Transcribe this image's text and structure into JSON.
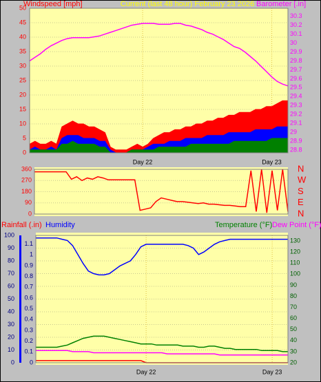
{
  "chart_data": [
    {
      "type": "line",
      "title": "Current (last 48 hour) February 23 2026",
      "categories": [
        null,
        null,
        null,
        null,
        null,
        null,
        null,
        null,
        null,
        null,
        null,
        null,
        null,
        null,
        null,
        null,
        null,
        null,
        null,
        null,
        null,
        "Day 22",
        null,
        null,
        null,
        null,
        null,
        null,
        null,
        null,
        null,
        null,
        null,
        null,
        null,
        null,
        null,
        null,
        null,
        null,
        null,
        null,
        null,
        null,
        null,
        "Day 23",
        null,
        null,
        null
      ],
      "ylim": [
        0,
        50
      ],
      "yticks": [
        0,
        5,
        10,
        15,
        20,
        25,
        30,
        35,
        40,
        45,
        50
      ],
      "y2lim": [
        28.77,
        30.39
      ],
      "y2ticks": [
        28.8,
        28.9,
        29,
        29.1,
        29.2,
        29.3,
        29.4,
        29.5,
        29.6,
        29.7,
        29.8,
        29.9,
        30,
        30.1,
        30.2,
        30.3
      ],
      "grid": true,
      "series": [
        {
          "name": "Windspeed [mph]",
          "color": "#ff0000",
          "fill": true,
          "values": [
            3,
            4,
            3,
            3,
            4,
            3,
            9,
            10,
            11,
            10,
            10,
            9,
            9,
            8,
            7,
            2,
            1,
            1,
            1,
            2,
            3,
            2,
            3,
            5,
            6,
            7,
            7,
            8,
            8,
            9,
            9,
            10,
            10,
            11,
            11,
            12,
            12,
            13,
            13,
            14,
            14,
            14,
            15,
            15,
            16,
            16,
            17,
            18,
            18
          ]
        },
        {
          "color": "#0000ff",
          "fill": true,
          "values": [
            1,
            2,
            1,
            1,
            2,
            1,
            5,
            6,
            6,
            6,
            5,
            5,
            5,
            4,
            4,
            1,
            0,
            0,
            0,
            1,
            1,
            1,
            2,
            3,
            3,
            3,
            4,
            4,
            4,
            5,
            5,
            5,
            5,
            6,
            6,
            6,
            6,
            7,
            7,
            7,
            7,
            7,
            8,
            8,
            8,
            8,
            9,
            9,
            9
          ]
        },
        {
          "color": "#008000",
          "fill": true,
          "values": [
            1,
            1,
            1,
            1,
            1,
            1,
            3,
            3,
            4,
            3,
            3,
            3,
            3,
            2,
            2,
            0,
            0,
            0,
            0,
            1,
            1,
            1,
            1,
            1,
            2,
            2,
            2,
            2,
            2,
            2,
            3,
            3,
            3,
            3,
            3,
            3,
            3,
            3,
            4,
            4,
            4,
            4,
            4,
            4,
            4,
            5,
            5,
            5,
            5
          ]
        },
        {
          "name": "Barometer [.in]",
          "color": "#ff00ff",
          "axis": "y2",
          "values": [
            29.8,
            29.84,
            29.88,
            29.93,
            29.97,
            30.0,
            30.03,
            30.05,
            30.06,
            30.06,
            30.06,
            30.06,
            30.07,
            30.08,
            30.1,
            30.12,
            30.14,
            30.16,
            30.18,
            30.2,
            30.21,
            30.22,
            30.22,
            30.22,
            30.21,
            30.21,
            30.21,
            30.22,
            30.22,
            30.2,
            30.19,
            30.17,
            30.15,
            30.12,
            30.1,
            30.07,
            30.04,
            30.0,
            29.96,
            29.94,
            29.9,
            29.85,
            29.8,
            29.74,
            29.68,
            29.62,
            29.57,
            29.54,
            29.52
          ]
        }
      ]
    },
    {
      "type": "line",
      "ylim": [
        0,
        360
      ],
      "yticks": [
        0,
        90,
        180,
        270,
        360
      ],
      "y2lim": [
        0,
        360
      ],
      "y2ticks": [
        {
          "value": 360,
          "label": "N"
        },
        {
          "value": 270,
          "label": "W"
        },
        {
          "value": 180,
          "label": "S"
        },
        {
          "value": 90,
          "label": "E"
        },
        {
          "value": 0,
          "label": "N"
        }
      ],
      "grid": true,
      "series": [
        {
          "color": "#ff0000",
          "values": [
            340,
            340,
            340,
            340,
            340,
            340,
            340,
            280,
            300,
            270,
            290,
            280,
            300,
            290,
            275,
            275,
            275,
            275,
            275,
            275,
            30,
            40,
            50,
            100,
            130,
            120,
            110,
            100,
            100,
            95,
            90,
            85,
            90,
            80,
            80,
            75,
            70,
            70,
            65,
            60,
            60,
            350,
            20,
            360,
            10,
            350,
            30,
            360,
            20
          ]
        }
      ]
    },
    {
      "type": "line",
      "categories": [
        null,
        null,
        null,
        null,
        null,
        null,
        null,
        null,
        null,
        null,
        null,
        null,
        null,
        null,
        null,
        null,
        null,
        null,
        null,
        null,
        null,
        "Day 22",
        null,
        null,
        null,
        null,
        null,
        null,
        null,
        null,
        null,
        null,
        null,
        null,
        null,
        null,
        null,
        null,
        null,
        null,
        null,
        null,
        null,
        null,
        null,
        "Day 23",
        null,
        null,
        null
      ],
      "ylim": [
        0,
        100
      ],
      "yticks": [
        0,
        10,
        20,
        30,
        40,
        50,
        60,
        70,
        80,
        90,
        100
      ],
      "y3lim": [
        0,
        1.18
      ],
      "y3ticks": [
        0,
        0.1,
        0.2,
        0.3,
        0.4,
        0.5,
        0.6,
        0.7,
        0.8,
        0.9,
        1,
        1.1
      ],
      "y2lim": [
        20,
        135
      ],
      "y2ticks": [
        20,
        30,
        40,
        50,
        60,
        70,
        80,
        90,
        100,
        110,
        120,
        130
      ],
      "grid": true,
      "series": [
        {
          "name": "Rainfall (.in)",
          "color": "#ff0000",
          "axis": "y3",
          "values": [
            0.02,
            0.02,
            0.02,
            0.02,
            0.02,
            0.02,
            0.02,
            0.02,
            0.02,
            0.02,
            0.02,
            0.02,
            0.02,
            0.02,
            0.02,
            0.02,
            0.02,
            0.02,
            0.02,
            0.02,
            0.02,
            0,
            0,
            0,
            0,
            0,
            0,
            0,
            0,
            0,
            0,
            0,
            0,
            0,
            0,
            0,
            0,
            0,
            0,
            0,
            0,
            0,
            0,
            0,
            0,
            0,
            0,
            0,
            0
          ]
        },
        {
          "name": "Humidity",
          "color": "#0000ff",
          "axis": "y",
          "values": [
            98,
            98,
            98,
            98,
            98,
            97,
            96,
            92,
            85,
            78,
            72,
            70,
            69,
            69,
            70,
            73,
            76,
            78,
            80,
            85,
            91,
            93,
            93,
            93,
            93,
            93,
            93,
            93,
            93,
            92,
            90,
            85,
            87,
            90,
            93,
            95,
            96,
            97,
            97,
            97,
            97,
            97,
            97,
            97,
            97,
            97,
            97,
            97,
            97
          ]
        },
        {
          "name": "Temperature (°F)",
          "color": "#008000",
          "axis": "y2",
          "values": [
            34,
            34,
            34,
            34,
            34,
            35,
            36,
            38,
            40,
            42,
            43,
            44,
            44,
            44,
            43,
            42,
            41,
            40,
            39,
            38,
            37,
            37,
            37,
            36,
            36,
            36,
            36,
            36,
            35,
            35,
            35,
            34,
            34,
            35,
            35,
            34,
            33,
            33,
            32,
            32,
            32,
            32,
            32,
            31,
            31,
            31,
            31,
            30,
            30
          ]
        },
        {
          "name": "Dew Point (°F)",
          "color": "#ff00ff",
          "axis": "y2",
          "values": [
            31,
            31,
            31,
            31,
            31,
            31,
            31,
            30,
            30,
            30,
            30,
            29,
            29,
            29,
            29,
            29,
            29,
            29,
            29,
            29,
            29,
            29,
            29,
            29,
            29,
            28,
            28,
            28,
            28,
            28,
            28,
            28,
            28,
            28,
            28,
            27,
            27,
            27,
            27,
            27,
            27,
            27,
            27,
            27,
            27,
            27,
            27,
            27,
            27
          ]
        }
      ]
    }
  ]
}
